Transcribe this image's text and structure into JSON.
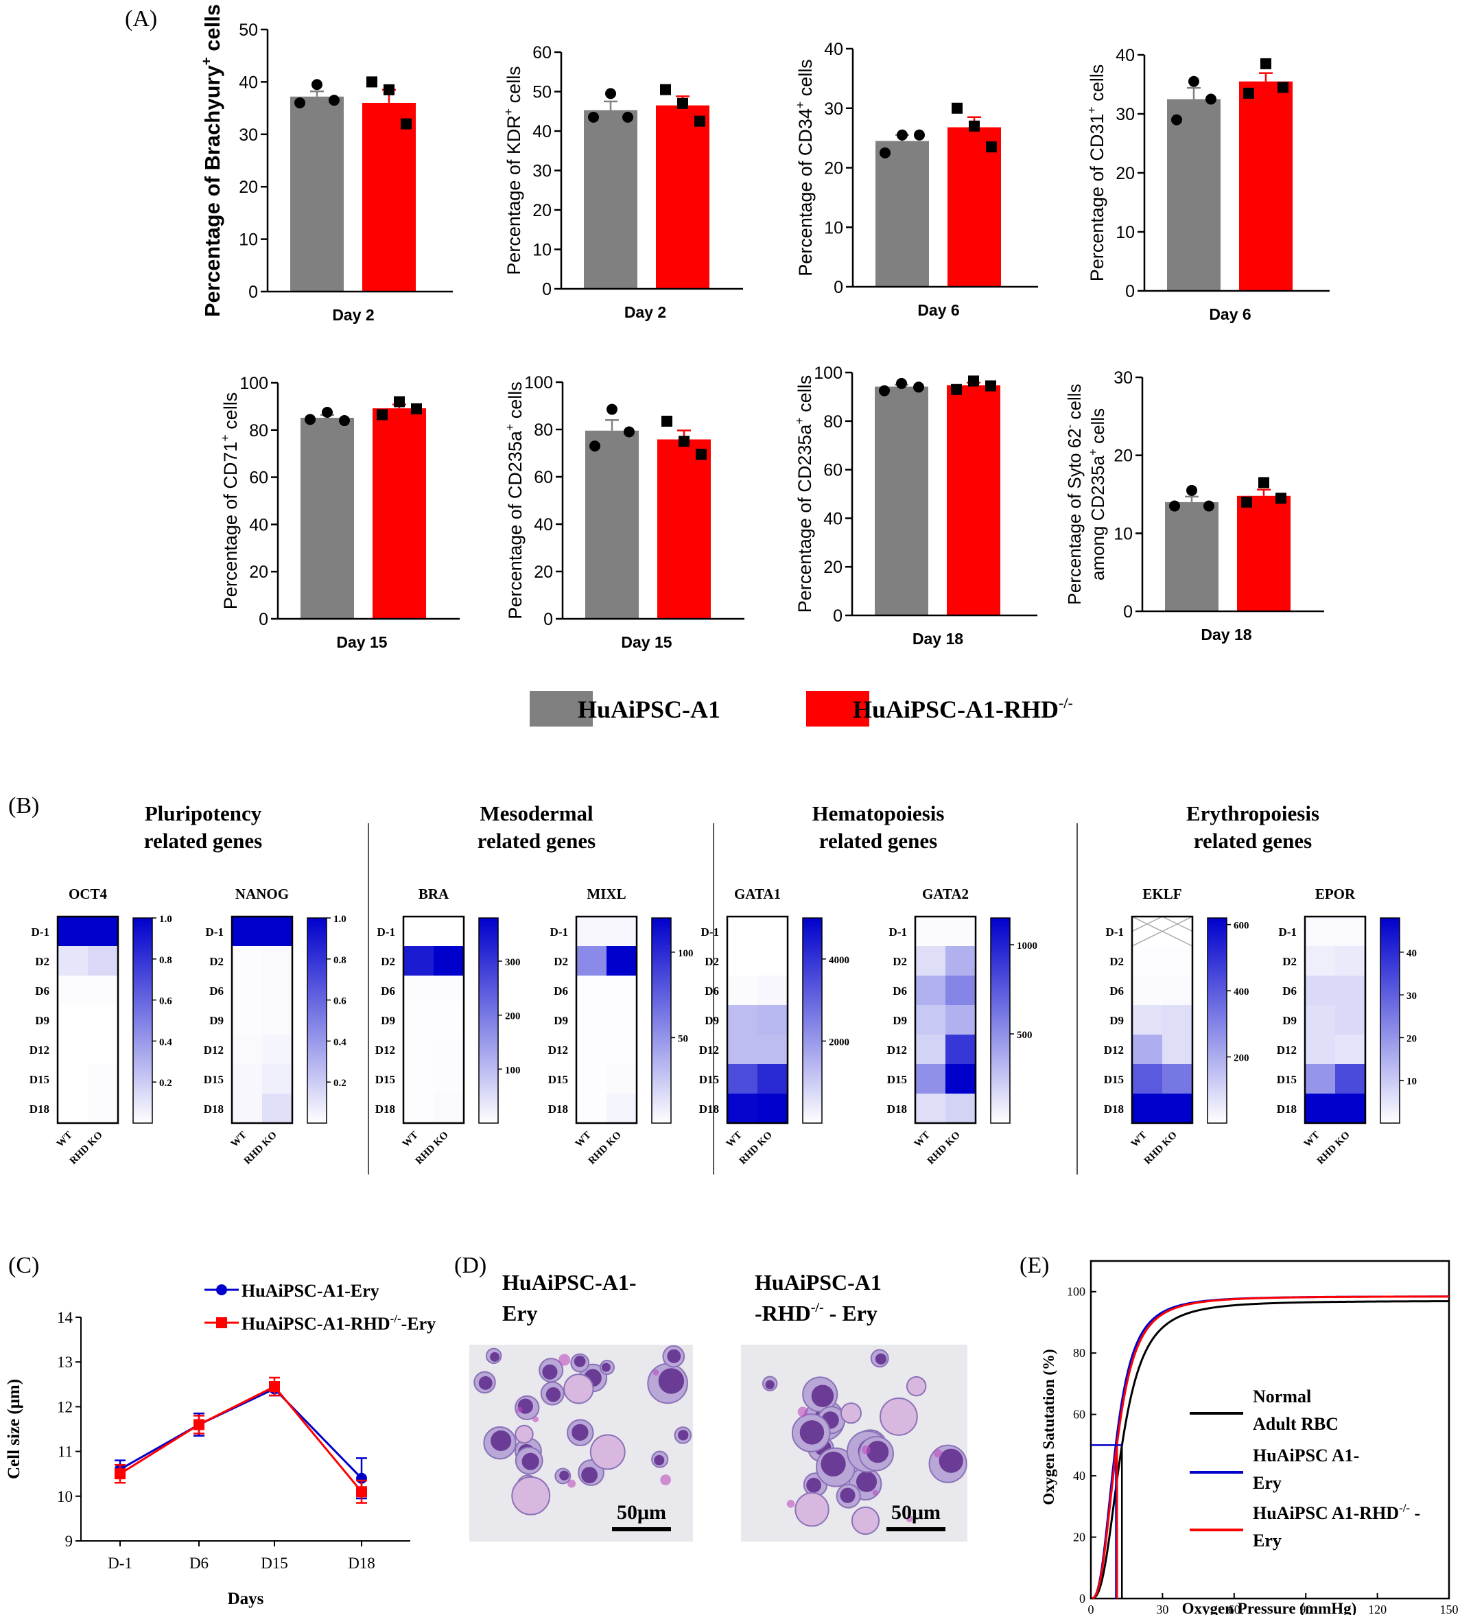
{
  "panel_labels": {
    "a": "(A)",
    "b": "(B)",
    "c": "(C)",
    "d": "(D)",
    "e": "(E)"
  },
  "colors": {
    "wt": "#808080",
    "ko": "#ff0000",
    "blue": "#0000cc",
    "black": "#000000"
  },
  "chart_data": [
    {
      "id": "A1",
      "type": "bar",
      "ylabel_parts": [
        "Percentage of Brachyury",
        "+",
        " cells"
      ],
      "xlabel": "Day 2",
      "ylim": [
        0,
        50
      ],
      "yticks": [
        0,
        10,
        20,
        30,
        40,
        50
      ],
      "bars": [
        {
          "value": 37.2,
          "sem": 1.0,
          "points": [
            36.0,
            39.5,
            36.5
          ]
        },
        {
          "value": 36.0,
          "sem": 2.5,
          "points": [
            40.0,
            38.5,
            32.0
          ]
        }
      ]
    },
    {
      "id": "A2",
      "type": "bar",
      "ylabel_parts": [
        "Percentage of KDR",
        "+",
        " cells"
      ],
      "xlabel": "Day 2",
      "ylim": [
        0,
        60
      ],
      "yticks": [
        0,
        10,
        20,
        30,
        40,
        50,
        60
      ],
      "bars": [
        {
          "value": 45.3,
          "sem": 2.2,
          "points": [
            43.5,
            49.5,
            43.5
          ]
        },
        {
          "value": 46.5,
          "sem": 2.3,
          "points": [
            50.5,
            47.0,
            42.5
          ]
        }
      ]
    },
    {
      "id": "A3",
      "type": "bar",
      "ylabel_parts": [
        "Percentage of CD34",
        "+",
        " cells"
      ],
      "xlabel": "Day 6",
      "ylim": [
        0,
        40
      ],
      "yticks": [
        0,
        10,
        20,
        30,
        40
      ],
      "bars": [
        {
          "value": 24.5,
          "sem": 1.0,
          "points": [
            22.5,
            25.5,
            25.5
          ]
        },
        {
          "value": 26.8,
          "sem": 1.7,
          "points": [
            30.0,
            27.0,
            23.5
          ]
        }
      ]
    },
    {
      "id": "A4",
      "type": "bar",
      "ylabel_parts": [
        "Percentage of CD31",
        "+",
        " cells"
      ],
      "xlabel": "Day 6",
      "ylim": [
        0,
        40
      ],
      "yticks": [
        0,
        10,
        20,
        30,
        40
      ],
      "bars": [
        {
          "value": 32.5,
          "sem": 1.9,
          "points": [
            29.0,
            35.5,
            32.5
          ]
        },
        {
          "value": 35.5,
          "sem": 1.4,
          "points": [
            33.5,
            38.5,
            34.5
          ]
        }
      ]
    },
    {
      "id": "A5",
      "type": "bar",
      "ylabel_parts": [
        "Percentage of CD71",
        "+",
        " cells"
      ],
      "xlabel": "Day 15",
      "ylim": [
        0,
        100
      ],
      "yticks": [
        0,
        20,
        40,
        60,
        80,
        100
      ],
      "bars": [
        {
          "value": 85.2,
          "sem": 1.2,
          "points": [
            84.5,
            87.5,
            84.0
          ]
        },
        {
          "value": 89.2,
          "sem": 1.6,
          "points": [
            86.5,
            92.0,
            89.0
          ]
        }
      ]
    },
    {
      "id": "A6",
      "type": "bar",
      "ylabel_parts": [
        "Percentage of CD235a",
        "+",
        " cells"
      ],
      "xlabel": "Day 15",
      "ylim": [
        0,
        100
      ],
      "yticks": [
        0,
        20,
        40,
        60,
        80,
        100
      ],
      "bars": [
        {
          "value": 79.5,
          "sem": 4.5,
          "points": [
            73.0,
            88.5,
            79.0
          ]
        },
        {
          "value": 75.8,
          "sem": 3.8,
          "points": [
            83.5,
            75.0,
            69.5
          ]
        }
      ]
    },
    {
      "id": "A7",
      "type": "bar",
      "ylabel_parts": [
        "Percentage of CD235a",
        "+",
        " cells"
      ],
      "xlabel": "Day 18",
      "ylim": [
        0,
        100
      ],
      "yticks": [
        0,
        20,
        40,
        60,
        80,
        100
      ],
      "bars": [
        {
          "value": 94.2,
          "sem": 0.8,
          "points": [
            92.5,
            95.5,
            94.0
          ]
        },
        {
          "value": 94.8,
          "sem": 1.0,
          "points": [
            93.0,
            96.5,
            94.5
          ]
        }
      ]
    },
    {
      "id": "A8",
      "type": "bar",
      "ylabel_parts": [
        "Percentage of Syto 62",
        "-",
        " cells"
      ],
      "ylabel2_parts": [
        "among CD235a",
        "+",
        " cells"
      ],
      "xlabel": "Day 18",
      "ylim": [
        0,
        30
      ],
      "yticks": [
        0,
        10,
        20,
        30
      ],
      "bars": [
        {
          "value": 14.0,
          "sem": 0.7,
          "points": [
            13.5,
            15.5,
            13.5
          ]
        },
        {
          "value": 14.8,
          "sem": 0.8,
          "points": [
            14.0,
            16.5,
            14.5
          ]
        }
      ]
    }
  ],
  "legend_a": {
    "wt": "HuAiPSC-A1",
    "ko": "HuAiPSC-A1-RHD",
    "ko_sup": "-/-"
  },
  "heatmap": {
    "rows": [
      "D-1",
      "D2",
      "D6",
      "D9",
      "D12",
      "D15",
      "D18"
    ],
    "cols": [
      "WT",
      "RHD KO"
    ],
    "groups": [
      {
        "title1": "Pluripotency",
        "title2": "related genes"
      },
      {
        "title1": "Mesodermal",
        "title2": "related genes"
      },
      {
        "title1": "Hematopoiesis",
        "title2": "related genes"
      },
      {
        "title1": "Erythropoiesis",
        "title2": "related genes"
      }
    ],
    "genes": [
      {
        "name": "OCT4",
        "vmax": 1.0,
        "ticks": [
          "0.2",
          "0.4",
          "0.6",
          "0.8",
          "1.0"
        ],
        "tick_values": [
          0.2,
          0.4,
          0.6,
          0.8,
          1.0
        ],
        "values": [
          [
            1.0,
            1.0
          ],
          [
            0.1,
            0.15
          ],
          [
            0.01,
            0.01
          ],
          [
            0.0,
            0.0
          ],
          [
            0.0,
            0.0
          ],
          [
            0.0,
            0.01
          ],
          [
            0.0,
            0.01
          ]
        ],
        "crossed": []
      },
      {
        "name": "NANOG",
        "vmax": 1.0,
        "ticks": [
          "0.2",
          "0.4",
          "0.6",
          "0.8",
          "1.0"
        ],
        "tick_values": [
          0.2,
          0.4,
          0.6,
          0.8,
          1.0
        ],
        "values": [
          [
            1.0,
            1.0
          ],
          [
            0.01,
            0.02
          ],
          [
            0.01,
            0.02
          ],
          [
            0.01,
            0.02
          ],
          [
            0.02,
            0.04
          ],
          [
            0.03,
            0.06
          ],
          [
            0.03,
            0.12
          ]
        ],
        "crossed": []
      },
      {
        "name": "BRA",
        "vmax": 380,
        "ticks": [
          "100",
          "200",
          "300"
        ],
        "tick_values": [
          100,
          200,
          300
        ],
        "values": [
          [
            0,
            0
          ],
          [
            340,
            380
          ],
          [
            5,
            5
          ],
          [
            3,
            3
          ],
          [
            3,
            5
          ],
          [
            3,
            5
          ],
          [
            3,
            8
          ]
        ],
        "crossed": []
      },
      {
        "name": "MIXL",
        "vmax": 120,
        "ticks": [
          "50",
          "100"
        ],
        "tick_values": [
          50,
          100
        ],
        "values": [
          [
            4,
            4
          ],
          [
            55,
            120
          ],
          [
            1,
            1
          ],
          [
            1,
            1
          ],
          [
            1,
            1
          ],
          [
            1,
            2
          ],
          [
            1,
            5
          ]
        ],
        "crossed": []
      },
      {
        "name": "GATA1",
        "vmax": 5000,
        "ticks": [
          "2000",
          "4000"
        ],
        "tick_values": [
          2000,
          4000
        ],
        "values": [
          [
            0,
            0
          ],
          [
            0,
            0
          ],
          [
            80,
            150
          ],
          [
            1300,
            1400
          ],
          [
            1300,
            1300
          ],
          [
            3500,
            4200
          ],
          [
            4900,
            5000
          ]
        ],
        "crossed": []
      },
      {
        "name": "GATA2",
        "vmax": 1150,
        "ticks": [
          "500",
          "1000"
        ],
        "tick_values": [
          500,
          1000
        ],
        "values": [
          [
            20,
            20
          ],
          [
            150,
            350
          ],
          [
            350,
            550
          ],
          [
            250,
            350
          ],
          [
            200,
            900
          ],
          [
            500,
            1150
          ],
          [
            150,
            200
          ]
        ],
        "crossed": []
      },
      {
        "name": "EKLF",
        "vmax": 620,
        "ticks": [
          "200",
          "400",
          "600"
        ],
        "tick_values": [
          200,
          400,
          600
        ],
        "values": [
          [
            0,
            0
          ],
          [
            5,
            5
          ],
          [
            10,
            15
          ],
          [
            70,
            80
          ],
          [
            200,
            80
          ],
          [
            400,
            330
          ],
          [
            620,
            620
          ]
        ],
        "crossed": [
          0
        ]
      },
      {
        "name": "EPOR",
        "vmax": 48,
        "ticks": [
          "10",
          "20",
          "30",
          "40"
        ],
        "tick_values": [
          10,
          20,
          30,
          40
        ],
        "values": [
          [
            1,
            1
          ],
          [
            3,
            4
          ],
          [
            7,
            7
          ],
          [
            6,
            7
          ],
          [
            6,
            5
          ],
          [
            20,
            34
          ],
          [
            48,
            48
          ]
        ],
        "crossed": []
      }
    ]
  },
  "chart_c": {
    "type": "line",
    "ylabel": "Cell size (μm)",
    "xlabel": "Days",
    "categories": [
      "D-1",
      "D6",
      "D15",
      "D18"
    ],
    "ylim": [
      9,
      14
    ],
    "yticks": [
      9,
      10,
      11,
      12,
      13,
      14
    ],
    "series": [
      {
        "name": "HuAiPSC-A1-Ery",
        "values": [
          10.6,
          11.6,
          12.4,
          10.4
        ],
        "err": [
          0.2,
          0.25,
          0.15,
          0.45
        ]
      },
      {
        "name_parts": [
          "HuAiPSC-A1-RHD",
          "-/-",
          "-Ery"
        ],
        "values": [
          10.5,
          11.6,
          12.45,
          10.1
        ],
        "err": [
          0.2,
          0.2,
          0.2,
          0.25
        ]
      }
    ]
  },
  "panel_d": {
    "left_title1": "HuAiPSC-A1-",
    "left_title2": "Ery",
    "right_title1": "HuAiPSC-A1",
    "right_title2a": "-RHD",
    "right_title2sup": "-/-",
    "right_title2b": " - Ery",
    "scale_label": "50μm"
  },
  "chart_e": {
    "type": "line",
    "ylabel": "Oxygen Satutation (%)",
    "xlabel": "Oxygen Pressure (mmHg)",
    "xlim": [
      0,
      150
    ],
    "ylim": [
      0,
      110
    ],
    "xticks": [
      0,
      30,
      60,
      90,
      120,
      150
    ],
    "yticks": [
      0,
      20,
      40,
      60,
      80,
      100
    ],
    "p50": {
      "normal": 13,
      "ery": 10.5,
      "ko": 11
    },
    "series": [
      {
        "label1": "Normal",
        "label2": "Adult RBC",
        "p50": 13,
        "color": "#000000"
      },
      {
        "label1": "HuAiPSC A1-",
        "label2": "Ery",
        "p50": 10.5,
        "color": "#0000cc"
      },
      {
        "label1_parts": [
          "HuAiPSC A1-RHD",
          "-/-",
          " -"
        ],
        "label2": "Ery",
        "p50": 11,
        "color": "#ff0000"
      }
    ]
  }
}
